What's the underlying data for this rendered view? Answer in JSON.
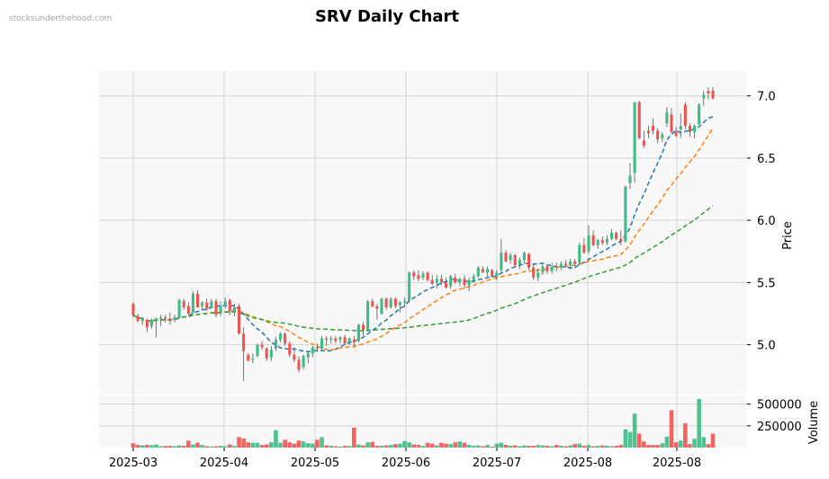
{
  "watermark": "stocksunderthehood.com",
  "chart_data": {
    "type": "candlestick",
    "title": "SRV Daily Chart",
    "ylabel": "Price",
    "volume_label": "Volume",
    "x_tick_labels": [
      "2025-03",
      "2025-04",
      "2025-05",
      "2025-06",
      "2025-07",
      "2025-08",
      "2025-08"
    ],
    "price_ticks": [
      5.0,
      5.5,
      6.0,
      6.5,
      7.0
    ],
    "price_tick_labels": [
      "5.0",
      "5.5",
      "6.0",
      "6.5",
      "7.0"
    ],
    "volume_ticks": [
      250000,
      500000
    ],
    "volume_tick_labels": [
      "250000",
      "500000"
    ],
    "ylim": [
      4.6,
      7.2
    ],
    "volume_lim": [
      0,
      600000
    ],
    "grid": true,
    "colors": {
      "up": "#26a69a",
      "up_bar": "#3dbb85",
      "down": "#ef5350",
      "ma_short": "#1f77b4",
      "ma_mid": "#ff7f0e",
      "ma_long": "#2ca02c",
      "panel_bg": "#f8f8f8",
      "grid": "#d4d4d4"
    },
    "candles": [
      [
        5.33,
        5.34,
        5.22,
        5.24,
        50000
      ],
      [
        5.23,
        5.25,
        5.18,
        5.19,
        30000
      ],
      [
        5.19,
        5.22,
        5.16,
        5.2,
        25000
      ],
      [
        5.2,
        5.21,
        5.1,
        5.14,
        30000
      ],
      [
        5.15,
        5.21,
        5.13,
        5.2,
        28000
      ],
      [
        5.2,
        5.22,
        5.06,
        5.21,
        35000
      ],
      [
        5.21,
        5.24,
        5.15,
        5.22,
        15000
      ],
      [
        5.22,
        5.24,
        5.18,
        5.21,
        18000
      ],
      [
        5.21,
        5.26,
        5.16,
        5.19,
        20000
      ],
      [
        5.2,
        5.24,
        5.18,
        5.22,
        16000
      ],
      [
        5.22,
        5.37,
        5.21,
        5.36,
        25000
      ],
      [
        5.35,
        5.37,
        5.28,
        5.3,
        20000
      ],
      [
        5.31,
        5.34,
        5.24,
        5.25,
        80000
      ],
      [
        5.26,
        5.43,
        5.25,
        5.41,
        35000
      ],
      [
        5.41,
        5.44,
        5.3,
        5.3,
        55000
      ],
      [
        5.31,
        5.35,
        5.28,
        5.34,
        30000
      ],
      [
        5.34,
        5.37,
        5.27,
        5.29,
        15000
      ],
      [
        5.3,
        5.37,
        5.29,
        5.35,
        12000
      ],
      [
        5.35,
        5.37,
        5.22,
        5.24,
        15000
      ],
      [
        5.26,
        5.35,
        5.23,
        5.31,
        20000
      ],
      [
        5.31,
        5.38,
        5.29,
        5.35,
        15000
      ],
      [
        5.36,
        5.37,
        5.24,
        5.27,
        35000
      ],
      [
        5.26,
        5.33,
        5.23,
        5.3,
        18000
      ],
      [
        5.31,
        5.33,
        5.08,
        5.09,
        120000
      ],
      [
        5.09,
        5.14,
        4.71,
        4.95,
        105000
      ],
      [
        4.92,
        4.93,
        4.87,
        4.87,
        60000
      ],
      [
        4.88,
        4.93,
        4.85,
        4.89,
        55000
      ],
      [
        4.91,
        5.01,
        4.9,
        5.0,
        55000
      ],
      [
        5.0,
        5.03,
        4.96,
        4.98,
        30000
      ],
      [
        4.97,
        4.98,
        4.87,
        4.89,
        35000
      ],
      [
        4.9,
        4.99,
        4.87,
        4.96,
        60000
      ],
      [
        4.97,
        5.06,
        4.95,
        5.04,
        200000
      ],
      [
        5.04,
        5.1,
        5.02,
        5.09,
        55000
      ],
      [
        5.09,
        5.1,
        4.99,
        5.01,
        90000
      ],
      [
        5.01,
        5.03,
        4.9,
        4.92,
        60000
      ],
      [
        4.92,
        4.98,
        4.86,
        4.88,
        45000
      ],
      [
        4.88,
        4.91,
        4.78,
        4.8,
        80000
      ],
      [
        4.82,
        4.92,
        4.8,
        4.91,
        70000
      ],
      [
        4.9,
        4.95,
        4.85,
        4.93,
        50000
      ],
      [
        4.93,
        4.99,
        4.9,
        4.98,
        45000
      ],
      [
        4.98,
        5.01,
        4.94,
        4.97,
        90000
      ],
      [
        4.97,
        5.07,
        4.96,
        5.05,
        120000
      ],
      [
        5.05,
        5.07,
        4.99,
        5.04,
        25000
      ],
      [
        5.04,
        5.07,
        5.01,
        5.05,
        20000
      ],
      [
        5.05,
        5.07,
        5.01,
        5.03,
        15000
      ],
      [
        5.04,
        5.07,
        5.01,
        5.06,
        10000
      ],
      [
        5.06,
        5.08,
        5.0,
        5.01,
        20000
      ],
      [
        5.02,
        5.06,
        5.0,
        5.05,
        18000
      ],
      [
        5.04,
        5.07,
        4.98,
        5.02,
        230000
      ],
      [
        5.03,
        5.17,
        5.02,
        5.16,
        35000
      ],
      [
        5.16,
        5.18,
        5.07,
        5.12,
        25000
      ],
      [
        5.12,
        5.36,
        5.11,
        5.35,
        60000
      ],
      [
        5.35,
        5.37,
        5.3,
        5.31,
        65000
      ],
      [
        5.31,
        5.33,
        5.2,
        5.29,
        20000
      ],
      [
        5.25,
        5.38,
        5.24,
        5.37,
        20000
      ],
      [
        5.37,
        5.38,
        5.28,
        5.3,
        25000
      ],
      [
        5.3,
        5.38,
        5.29,
        5.37,
        30000
      ],
      [
        5.37,
        5.38,
        5.29,
        5.31,
        40000
      ],
      [
        5.32,
        5.35,
        5.26,
        5.34,
        45000
      ],
      [
        5.34,
        5.38,
        5.31,
        5.35,
        75000
      ],
      [
        5.36,
        5.59,
        5.34,
        5.58,
        60000
      ],
      [
        5.58,
        5.6,
        5.52,
        5.55,
        35000
      ],
      [
        5.56,
        5.6,
        5.51,
        5.53,
        30000
      ],
      [
        5.54,
        5.59,
        5.52,
        5.57,
        20000
      ],
      [
        5.58,
        5.59,
        5.51,
        5.52,
        55000
      ],
      [
        5.52,
        5.56,
        5.48,
        5.49,
        45000
      ],
      [
        5.5,
        5.56,
        5.45,
        5.53,
        25000
      ],
      [
        5.53,
        5.56,
        5.48,
        5.5,
        55000
      ],
      [
        5.5,
        5.54,
        5.45,
        5.46,
        45000
      ],
      [
        5.47,
        5.56,
        5.45,
        5.55,
        40000
      ],
      [
        5.54,
        5.57,
        5.49,
        5.5,
        60000
      ],
      [
        5.5,
        5.54,
        5.47,
        5.53,
        70000
      ],
      [
        5.53,
        5.56,
        5.45,
        5.48,
        55000
      ],
      [
        5.48,
        5.54,
        5.43,
        5.52,
        30000
      ],
      [
        5.52,
        5.57,
        5.5,
        5.55,
        20000
      ],
      [
        5.55,
        5.63,
        5.54,
        5.62,
        25000
      ],
      [
        5.61,
        5.63,
        5.58,
        5.58,
        15000
      ],
      [
        5.58,
        5.63,
        5.55,
        5.61,
        30000
      ],
      [
        5.6,
        5.61,
        5.54,
        5.55,
        10000
      ],
      [
        5.55,
        5.6,
        5.52,
        5.58,
        45000
      ],
      [
        5.6,
        5.85,
        5.58,
        5.74,
        55000
      ],
      [
        5.74,
        5.76,
        5.66,
        5.67,
        30000
      ],
      [
        5.68,
        5.74,
        5.65,
        5.72,
        20000
      ],
      [
        5.72,
        5.73,
        5.62,
        5.64,
        25000
      ],
      [
        5.65,
        5.7,
        5.61,
        5.68,
        15000
      ],
      [
        5.68,
        5.75,
        5.65,
        5.74,
        25000
      ],
      [
        5.73,
        5.74,
        5.6,
        5.62,
        20000
      ],
      [
        5.62,
        5.65,
        5.52,
        5.54,
        20000
      ],
      [
        5.54,
        5.61,
        5.51,
        5.58,
        30000
      ],
      [
        5.58,
        5.65,
        5.56,
        5.63,
        25000
      ],
      [
        5.63,
        5.64,
        5.57,
        5.59,
        20000
      ],
      [
        5.59,
        5.66,
        5.57,
        5.63,
        15000
      ],
      [
        5.63,
        5.66,
        5.59,
        5.62,
        30000
      ],
      [
        5.62,
        5.67,
        5.6,
        5.65,
        20000
      ],
      [
        5.65,
        5.68,
        5.62,
        5.64,
        15000
      ],
      [
        5.64,
        5.69,
        5.61,
        5.67,
        25000
      ],
      [
        5.67,
        5.69,
        5.63,
        5.65,
        40000
      ],
      [
        5.66,
        5.82,
        5.64,
        5.8,
        45000
      ],
      [
        5.8,
        5.86,
        5.73,
        5.74,
        20000
      ],
      [
        5.75,
        5.96,
        5.73,
        5.88,
        30000
      ],
      [
        5.88,
        5.92,
        5.79,
        5.8,
        15000
      ],
      [
        5.8,
        5.85,
        5.77,
        5.84,
        20000
      ],
      [
        5.84,
        5.87,
        5.8,
        5.82,
        25000
      ],
      [
        5.82,
        5.88,
        5.8,
        5.85,
        20000
      ],
      [
        5.85,
        5.93,
        5.84,
        5.9,
        15000
      ],
      [
        5.9,
        5.91,
        5.84,
        5.85,
        20000
      ],
      [
        5.85,
        5.92,
        5.8,
        5.83,
        30000
      ],
      [
        5.83,
        6.28,
        5.82,
        6.27,
        210000
      ],
      [
        6.3,
        6.46,
        6.25,
        6.36,
        180000
      ],
      [
        6.38,
        6.95,
        6.3,
        6.95,
        390000
      ],
      [
        6.95,
        6.96,
        6.65,
        6.66,
        160000
      ],
      [
        6.64,
        6.72,
        6.58,
        6.6,
        70000
      ],
      [
        6.72,
        6.76,
        6.66,
        6.7,
        30000
      ],
      [
        6.76,
        6.82,
        6.69,
        6.72,
        30000
      ],
      [
        6.72,
        6.74,
        6.62,
        6.65,
        30000
      ],
      [
        6.66,
        6.71,
        6.63,
        6.69,
        50000
      ],
      [
        6.78,
        6.91,
        6.75,
        6.87,
        125000
      ],
      [
        6.85,
        6.9,
        6.7,
        6.71,
        430000
      ],
      [
        6.71,
        6.75,
        6.67,
        6.68,
        60000
      ],
      [
        6.73,
        6.86,
        6.66,
        6.76,
        80000
      ],
      [
        6.93,
        6.95,
        6.73,
        6.76,
        280000
      ],
      [
        6.76,
        6.78,
        6.67,
        6.71,
        40000
      ],
      [
        6.71,
        6.77,
        6.66,
        6.76,
        100000
      ],
      [
        6.77,
        6.94,
        6.77,
        6.93,
        560000
      ],
      [
        6.98,
        7.04,
        6.92,
        7.01,
        120000
      ],
      [
        7.04,
        7.07,
        6.97,
        7.02,
        40000
      ],
      [
        7.04,
        7.07,
        6.97,
        6.98,
        160000
      ]
    ]
  }
}
